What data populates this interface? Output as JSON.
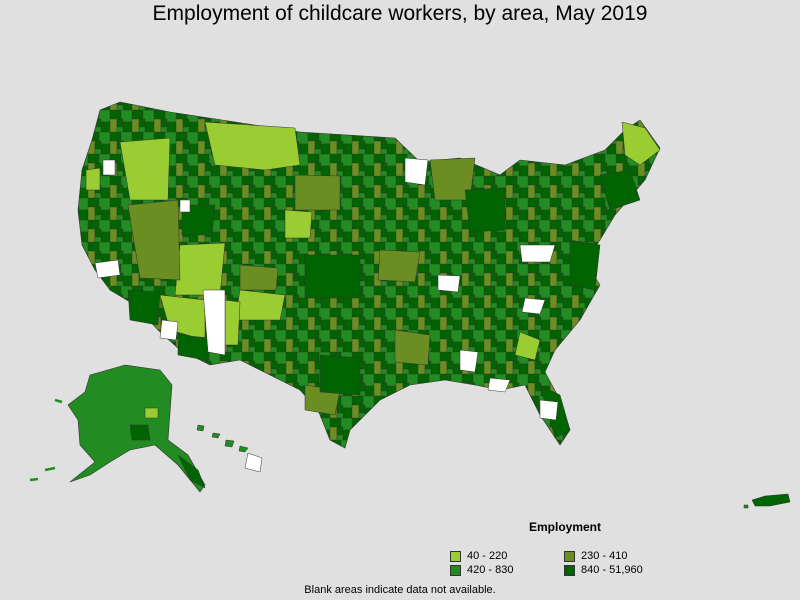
{
  "title": "Employment of childcare workers, by area, May 2019",
  "legend": {
    "title": "Employment",
    "items": [
      {
        "label": "40 - 220",
        "color": "#9acd32"
      },
      {
        "label": "230 - 410",
        "color": "#6b8e23"
      },
      {
        "label": "420 - 830",
        "color": "#228b22"
      },
      {
        "label": "840 - 51,960",
        "color": "#006400"
      }
    ]
  },
  "footnote": "Blank areas indicate data not available.",
  "colors": {
    "background": "#e0e0e0",
    "no_data": "#ffffff",
    "border": "#333333"
  }
}
